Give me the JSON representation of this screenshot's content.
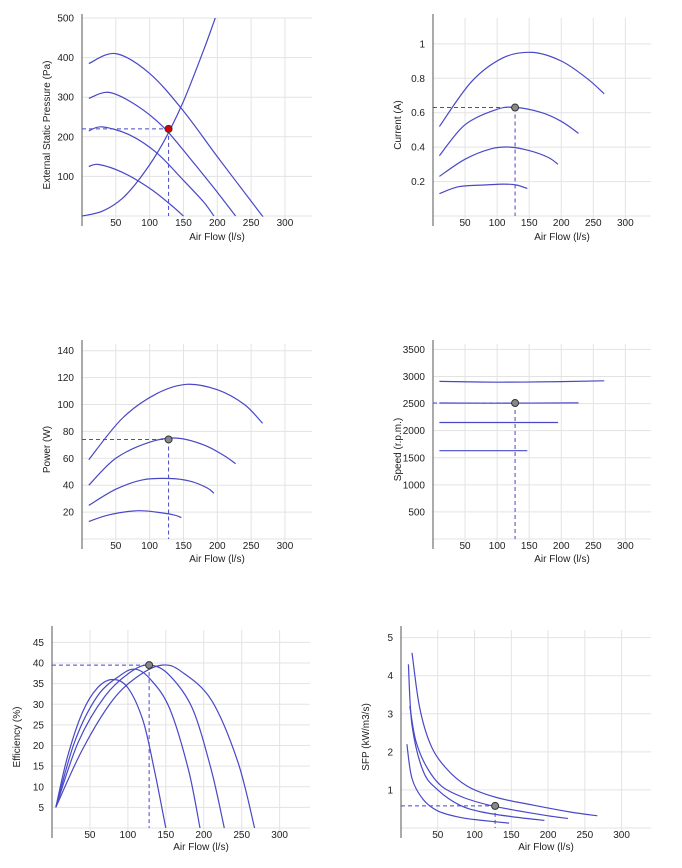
{
  "chart_data": [
    {
      "type": "line",
      "xlabel": "Air Flow (l/s)",
      "ylabel": "External Static Pressure (Pa)",
      "xlim": [
        0,
        340
      ],
      "ylim": [
        0,
        500
      ],
      "xticks": [
        50,
        100,
        150,
        200,
        250,
        300
      ],
      "yticks": [
        100,
        200,
        300,
        400,
        500
      ],
      "grid": true,
      "colors": {
        "curve": "#4848c8",
        "marker": "#dd0000"
      },
      "operating_point": {
        "x": 128,
        "y": 220
      },
      "series": [
        {
          "x": [
            10,
            50,
            100,
            150,
            200,
            260,
            267
          ],
          "y": [
            385,
            410,
            360,
            265,
            150,
            15,
            0
          ]
        },
        {
          "x": [
            10,
            40,
            80,
            120,
            160,
            200,
            227
          ],
          "y": [
            297,
            312,
            280,
            225,
            145,
            60,
            0
          ]
        },
        {
          "x": [
            10,
            30,
            70,
            110,
            150,
            180,
            195
          ],
          "y": [
            215,
            225,
            205,
            160,
            90,
            35,
            0
          ]
        },
        {
          "x": [
            10,
            25,
            60,
            100,
            130,
            150
          ],
          "y": [
            125,
            130,
            110,
            70,
            30,
            0
          ]
        },
        {
          "x": [
            0,
            30,
            60,
            90,
            120,
            150,
            180,
            197
          ],
          "y": [
            0,
            12,
            45,
            105,
            185,
            290,
            420,
            500
          ]
        }
      ]
    },
    {
      "type": "line",
      "xlabel": "Air Flow (l/s)",
      "ylabel": "Current (A)",
      "xlim": [
        0,
        340
      ],
      "ylim": [
        0,
        1.15
      ],
      "xticks": [
        50,
        100,
        150,
        200,
        250,
        300
      ],
      "yticks": [
        0.2,
        0.4,
        0.6,
        0.8,
        1
      ],
      "grid": true,
      "colors": {
        "curve": "#4848c8",
        "marker": "#888888"
      },
      "operating_point": {
        "x": 128,
        "y": 0.63
      },
      "series": [
        {
          "x": [
            10,
            60,
            110,
            155,
            200,
            240,
            267
          ],
          "y": [
            0.52,
            0.78,
            0.92,
            0.95,
            0.9,
            0.8,
            0.71
          ]
        },
        {
          "x": [
            10,
            50,
            100,
            130,
            170,
            200,
            227
          ],
          "y": [
            0.35,
            0.53,
            0.62,
            0.63,
            0.6,
            0.55,
            0.48
          ]
        },
        {
          "x": [
            10,
            50,
            90,
            120,
            150,
            180,
            195
          ],
          "y": [
            0.23,
            0.33,
            0.39,
            0.4,
            0.38,
            0.34,
            0.3
          ]
        },
        {
          "x": [
            10,
            40,
            80,
            110,
            130,
            147
          ],
          "y": [
            0.13,
            0.17,
            0.18,
            0.185,
            0.18,
            0.16
          ]
        }
      ]
    },
    {
      "type": "line",
      "xlabel": "Air Flow (l/s)",
      "ylabel": "Power (W)",
      "xlim": [
        0,
        340
      ],
      "ylim": [
        0,
        145
      ],
      "xticks": [
        50,
        100,
        150,
        200,
        250,
        300
      ],
      "yticks": [
        20,
        40,
        60,
        80,
        100,
        120,
        140
      ],
      "grid": true,
      "colors": {
        "curve": "#4848c8",
        "marker": "#888888"
      },
      "operating_point": {
        "x": 128,
        "y": 74
      },
      "series": [
        {
          "x": [
            10,
            60,
            110,
            155,
            200,
            240,
            267
          ],
          "y": [
            59,
            90,
            108,
            115,
            111,
            100,
            86
          ]
        },
        {
          "x": [
            10,
            50,
            100,
            140,
            180,
            210,
            227
          ],
          "y": [
            40,
            60,
            72,
            75,
            70,
            62,
            56
          ]
        },
        {
          "x": [
            10,
            50,
            90,
            130,
            160,
            185,
            195
          ],
          "y": [
            25,
            37,
            44,
            45,
            43,
            38,
            34
          ]
        },
        {
          "x": [
            10,
            40,
            80,
            110,
            135,
            147
          ],
          "y": [
            13,
            18,
            21,
            20,
            18,
            16
          ]
        }
      ]
    },
    {
      "type": "line",
      "xlabel": "Air Flow (l/s)",
      "ylabel": "Speed (r.p.m.)",
      "xlim": [
        0,
        340
      ],
      "ylim": [
        0,
        3600
      ],
      "xticks": [
        50,
        100,
        150,
        200,
        250,
        300
      ],
      "yticks": [
        500,
        1000,
        1500,
        2000,
        2500,
        3000,
        3500
      ],
      "grid": true,
      "colors": {
        "curve": "#4848c8",
        "marker": "#888888"
      },
      "operating_point": {
        "x": 128,
        "y": 2510
      },
      "series": [
        {
          "x": [
            10,
            100,
            200,
            267
          ],
          "y": [
            2910,
            2895,
            2905,
            2920
          ]
        },
        {
          "x": [
            10,
            100,
            227
          ],
          "y": [
            2510,
            2508,
            2512
          ]
        },
        {
          "x": [
            10,
            100,
            195
          ],
          "y": [
            2150,
            2150,
            2150
          ]
        },
        {
          "x": [
            10,
            80,
            147
          ],
          "y": [
            1630,
            1630,
            1630
          ]
        }
      ]
    },
    {
      "type": "line",
      "xlabel": "Air Flow (l/s)",
      "ylabel": "Efficiency (%)",
      "xlim": [
        0,
        340
      ],
      "ylim": [
        0,
        48
      ],
      "xticks": [
        50,
        100,
        150,
        200,
        250,
        300
      ],
      "yticks": [
        5,
        10,
        15,
        20,
        25,
        30,
        35,
        40,
        45
      ],
      "grid": true,
      "colors": {
        "curve": "#4848c8",
        "marker": "#888888"
      },
      "operating_point": {
        "x": 128,
        "y": 39.5
      },
      "series": [
        {
          "x": [
            5,
            20,
            40,
            60,
            80,
            100,
            120,
            135,
            150
          ],
          "y": [
            5,
            17,
            28,
            34,
            36,
            34,
            26,
            14,
            0
          ]
        },
        {
          "x": [
            5,
            30,
            60,
            90,
            110,
            130,
            155,
            180,
            195
          ],
          "y": [
            5,
            21,
            32,
            37,
            38.5,
            36,
            29,
            14,
            0
          ]
        },
        {
          "x": [
            5,
            35,
            70,
            105,
            130,
            155,
            185,
            210,
            227
          ],
          "y": [
            5,
            21,
            32,
            38,
            39.5,
            37,
            29,
            14,
            0
          ]
        },
        {
          "x": [
            5,
            40,
            80,
            115,
            145,
            170,
            210,
            245,
            267
          ],
          "y": [
            5,
            19,
            31,
            37,
            39.5,
            38,
            31,
            16,
            0
          ]
        }
      ]
    },
    {
      "type": "line",
      "xlabel": "Air Flow (l/s)",
      "ylabel": "SFP (kW/m3/s)",
      "xlim": [
        0,
        340
      ],
      "ylim": [
        0,
        5.2
      ],
      "xticks": [
        50,
        100,
        150,
        200,
        250,
        300
      ],
      "yticks": [
        1,
        2,
        3,
        4,
        5
      ],
      "grid": true,
      "colors": {
        "curve": "#4848c8",
        "marker": "#888888"
      },
      "operating_point": {
        "x": 128,
        "y": 0.58
      },
      "series": [
        {
          "x": [
            15,
            25,
            40,
            60,
            90,
            130,
            180,
            230,
            267
          ],
          "y": [
            4.6,
            3.2,
            2.2,
            1.6,
            1.1,
            0.8,
            0.6,
            0.42,
            0.32
          ]
        },
        {
          "x": [
            12,
            20,
            35,
            55,
            85,
            120,
            160,
            200,
            227
          ],
          "y": [
            3.2,
            2.3,
            1.6,
            1.1,
            0.8,
            0.6,
            0.45,
            0.32,
            0.25
          ]
        },
        {
          "x": [
            10,
            15,
            30,
            50,
            80,
            110,
            150,
            195
          ],
          "y": [
            4.3,
            2.7,
            1.5,
            1.0,
            0.6,
            0.42,
            0.3,
            0.2
          ]
        },
        {
          "x": [
            8,
            15,
            30,
            50,
            80,
            110,
            147
          ],
          "y": [
            2.2,
            1.3,
            0.75,
            0.45,
            0.28,
            0.2,
            0.13
          ]
        }
      ]
    }
  ]
}
